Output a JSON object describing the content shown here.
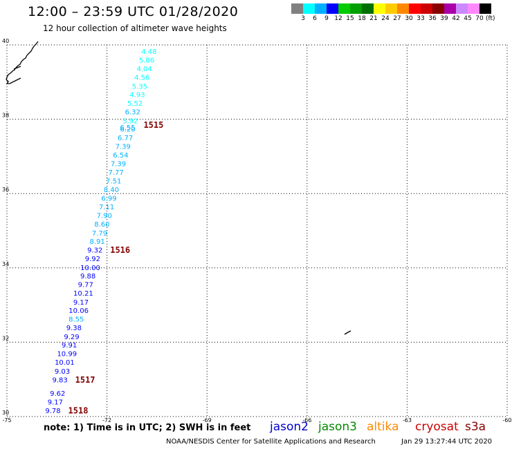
{
  "header": {
    "title": "12:00 – 23:59 UTC 01/28/2020",
    "subtitle": "12 hour collection of altimeter wave heights"
  },
  "colorbar": {
    "colors": [
      "#808080",
      "#00ffff",
      "#00b0ff",
      "#0000ff",
      "#00cc00",
      "#00a000",
      "#007000",
      "#ffff00",
      "#ffcc00",
      "#ff8800",
      "#ff0000",
      "#cc0000",
      "#880000",
      "#aa00aa",
      "#cc88ff",
      "#ff88ff",
      "#000000"
    ],
    "labels": [
      "3",
      "6",
      "9",
      "12",
      "15",
      "18",
      "21",
      "24",
      "27",
      "30",
      "33",
      "36",
      "39",
      "42",
      "45",
      "70"
    ],
    "unit": "(ft)"
  },
  "axes": {
    "x_ticks": [
      "-75",
      "-72",
      "-69",
      "-66",
      "-63",
      "-60"
    ],
    "y_ticks": [
      "40",
      "38",
      "36",
      "34",
      "32",
      "30"
    ],
    "lon_range": [
      -75,
      -60
    ],
    "lat_range": [
      30,
      40
    ]
  },
  "tracks": {
    "points": [
      {
        "lat": 39.81,
        "lon": -70.74,
        "v": "4.48"
      },
      {
        "lat": 39.58,
        "lon": -70.81,
        "v": "5.86"
      },
      {
        "lat": 39.35,
        "lon": -70.88,
        "v": "4.04"
      },
      {
        "lat": 39.12,
        "lon": -70.95,
        "v": "4.56"
      },
      {
        "lat": 38.88,
        "lon": -71.02,
        "v": "5.35"
      },
      {
        "lat": 38.65,
        "lon": -71.09,
        "v": "4.93"
      },
      {
        "lat": 38.42,
        "lon": -71.16,
        "v": "5.52"
      },
      {
        "lat": 38.19,
        "lon": -71.23,
        "v": "6.32"
      },
      {
        "lat": 37.95,
        "lon": -71.3,
        "v": "5.92"
      },
      {
        "lat": 37.77,
        "lon": -71.38,
        "v": "6.55"
      },
      {
        "lat": 37.72,
        "lon": -71.38,
        "v": "6.20"
      },
      {
        "lat": 37.49,
        "lon": -71.45,
        "v": "6.77"
      },
      {
        "lat": 37.26,
        "lon": -71.52,
        "v": "7.39"
      },
      {
        "lat": 37.03,
        "lon": -71.59,
        "v": "6.54"
      },
      {
        "lat": 36.79,
        "lon": -71.66,
        "v": "7.39"
      },
      {
        "lat": 36.56,
        "lon": -71.73,
        "v": "7.77"
      },
      {
        "lat": 36.33,
        "lon": -71.8,
        "v": "7.51"
      },
      {
        "lat": 36.1,
        "lon": -71.87,
        "v": "8.40"
      },
      {
        "lat": 35.86,
        "lon": -71.94,
        "v": "6.99"
      },
      {
        "lat": 35.63,
        "lon": -72.01,
        "v": "7.11"
      },
      {
        "lat": 35.4,
        "lon": -72.08,
        "v": "7.90"
      },
      {
        "lat": 35.17,
        "lon": -72.15,
        "v": "8.60"
      },
      {
        "lat": 34.93,
        "lon": -72.22,
        "v": "7.79"
      },
      {
        "lat": 34.7,
        "lon": -72.29,
        "v": "8.91"
      },
      {
        "lat": 34.47,
        "lon": -72.36,
        "v": "9.32"
      },
      {
        "lat": 34.24,
        "lon": -72.43,
        "v": "9.92"
      },
      {
        "lat": 34.0,
        "lon": -72.5,
        "v": "10.00"
      },
      {
        "lat": 33.77,
        "lon": -72.57,
        "v": "9.88"
      },
      {
        "lat": 33.54,
        "lon": -72.64,
        "v": "9.77"
      },
      {
        "lat": 33.31,
        "lon": -72.71,
        "v": "10.21"
      },
      {
        "lat": 33.07,
        "lon": -72.78,
        "v": "9.17"
      },
      {
        "lat": 32.84,
        "lon": -72.85,
        "v": "10.06"
      },
      {
        "lat": 32.61,
        "lon": -72.92,
        "v": "8.55"
      },
      {
        "lat": 32.38,
        "lon": -72.99,
        "v": "9.38"
      },
      {
        "lat": 32.14,
        "lon": -73.06,
        "v": "9.29"
      },
      {
        "lat": 31.91,
        "lon": -73.13,
        "v": "9.91"
      },
      {
        "lat": 31.68,
        "lon": -73.2,
        "v": "10.99"
      },
      {
        "lat": 31.45,
        "lon": -73.27,
        "v": "10.01"
      },
      {
        "lat": 31.21,
        "lon": -73.34,
        "v": "9.03"
      },
      {
        "lat": 30.98,
        "lon": -73.41,
        "v": "9.83"
      },
      {
        "lat": 30.61,
        "lon": -73.48,
        "v": "9.62"
      },
      {
        "lat": 30.38,
        "lon": -73.55,
        "v": "9.17"
      },
      {
        "lat": 30.15,
        "lon": -73.62,
        "v": "9.78"
      }
    ],
    "time_labels": [
      {
        "lat": 37.83,
        "lon": -71.36,
        "text": "1515"
      },
      {
        "lat": 34.47,
        "lon": -72.36,
        "text": "1516"
      },
      {
        "lat": 30.98,
        "lon": -73.41,
        "text": "1517"
      },
      {
        "lat": 30.15,
        "lon": -73.62,
        "text": "1518"
      }
    ],
    "time_color": "#800000"
  },
  "note": "note:  1) Time is in UTC;  2) SWH is in feet",
  "legend": [
    {
      "text": "jason2",
      "color": "#0000cc"
    },
    {
      "text": "jason3",
      "color": "#008800"
    },
    {
      "text": "altika",
      "color": "#ff8800"
    },
    {
      "text": "cryosat",
      "color": "#cc0000"
    },
    {
      "text": "s3a",
      "color": "#880000"
    }
  ],
  "footer": {
    "credit": "NOAA/NESDIS Center for Satellite Applications and Research",
    "generated": "Jan 29 13:27:44 UTC 2020"
  }
}
